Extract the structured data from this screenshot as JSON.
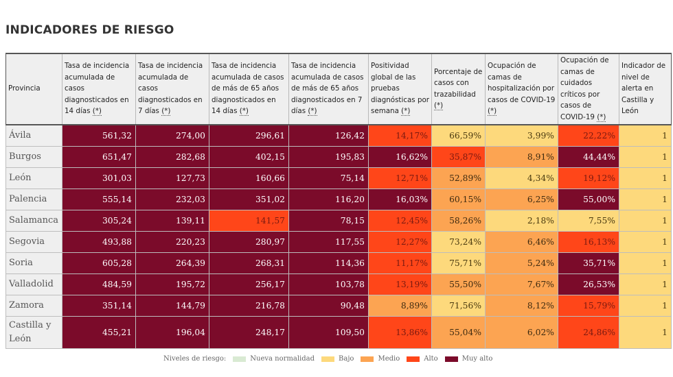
{
  "title": "INDICADORES DE RIESGO",
  "table": {
    "headers": [
      {
        "text": "Provincia",
        "note": ""
      },
      {
        "text": "Tasa de incidencia acumulada de casos diagnosticados en 14 días",
        "note": "(*)"
      },
      {
        "text": "Tasa de incidencia acumulada de casos diagnosticados en 7 días",
        "note": "(*)"
      },
      {
        "text": "Tasa de incidencia acumulada de casos de más de 65 años diagnosticados en 14 días",
        "note": "(*)"
      },
      {
        "text": "Tasa de incidencia acumulada de casos de más de 65 años diagnosticados en 7 días",
        "note": "(*)"
      },
      {
        "text": "Positividad global de las pruebas diagnósticas por semana",
        "note": "(*)"
      },
      {
        "text": "Porcentaje de casos con trazabilidad",
        "note": "(*)"
      },
      {
        "text": "Ocupación de camas de hospitalización por casos de COVID-19",
        "note": "(*)"
      },
      {
        "text": "Ocupación de camas de cuidados críticos por casos de COVID-19",
        "note": "(*)"
      },
      {
        "text": "Indicador de nivel de alerta en Castilla y León",
        "note": ""
      }
    ],
    "rows": [
      {
        "provincia": "Ávila",
        "cells": [
          {
            "v": "561,32",
            "level": "muyalto"
          },
          {
            "v": "274,00",
            "level": "muyalto"
          },
          {
            "v": "296,61",
            "level": "muyalto"
          },
          {
            "v": "126,42",
            "level": "muyalto"
          },
          {
            "v": "14,17%",
            "level": "alto"
          },
          {
            "v": "66,59%",
            "level": "bajo"
          },
          {
            "v": "3,99%",
            "level": "bajo"
          },
          {
            "v": "22,22%",
            "level": "alto"
          },
          {
            "v": "1",
            "level": "bajo"
          }
        ]
      },
      {
        "provincia": "Burgos",
        "cells": [
          {
            "v": "651,47",
            "level": "muyalto"
          },
          {
            "v": "282,68",
            "level": "muyalto"
          },
          {
            "v": "402,15",
            "level": "muyalto"
          },
          {
            "v": "195,83",
            "level": "muyalto"
          },
          {
            "v": "16,62%",
            "level": "muyalto"
          },
          {
            "v": "35,87%",
            "level": "alto"
          },
          {
            "v": "8,91%",
            "level": "medio"
          },
          {
            "v": "44,44%",
            "level": "muyalto"
          },
          {
            "v": "1",
            "level": "bajo"
          }
        ]
      },
      {
        "provincia": "León",
        "cells": [
          {
            "v": "301,03",
            "level": "muyalto"
          },
          {
            "v": "127,73",
            "level": "muyalto"
          },
          {
            "v": "160,66",
            "level": "muyalto"
          },
          {
            "v": "75,14",
            "level": "muyalto"
          },
          {
            "v": "12,71%",
            "level": "alto"
          },
          {
            "v": "52,89%",
            "level": "medio"
          },
          {
            "v": "4,34%",
            "level": "bajo"
          },
          {
            "v": "19,12%",
            "level": "alto"
          },
          {
            "v": "1",
            "level": "bajo"
          }
        ]
      },
      {
        "provincia": "Palencia",
        "cells": [
          {
            "v": "555,14",
            "level": "muyalto"
          },
          {
            "v": "232,03",
            "level": "muyalto"
          },
          {
            "v": "351,02",
            "level": "muyalto"
          },
          {
            "v": "116,20",
            "level": "muyalto"
          },
          {
            "v": "16,03%",
            "level": "muyalto"
          },
          {
            "v": "60,15%",
            "level": "medio"
          },
          {
            "v": "6,25%",
            "level": "medio"
          },
          {
            "v": "55,00%",
            "level": "muyalto"
          },
          {
            "v": "1",
            "level": "bajo"
          }
        ]
      },
      {
        "provincia": "Salamanca",
        "cells": [
          {
            "v": "305,24",
            "level": "muyalto"
          },
          {
            "v": "139,11",
            "level": "muyalto"
          },
          {
            "v": "141,57",
            "level": "alto"
          },
          {
            "v": "78,15",
            "level": "muyalto"
          },
          {
            "v": "12,45%",
            "level": "alto"
          },
          {
            "v": "58,26%",
            "level": "medio"
          },
          {
            "v": "2,18%",
            "level": "bajo"
          },
          {
            "v": "7,55%",
            "level": "bajo"
          },
          {
            "v": "1",
            "level": "bajo"
          }
        ]
      },
      {
        "provincia": "Segovia",
        "cells": [
          {
            "v": "493,88",
            "level": "muyalto"
          },
          {
            "v": "220,23",
            "level": "muyalto"
          },
          {
            "v": "280,97",
            "level": "muyalto"
          },
          {
            "v": "117,55",
            "level": "muyalto"
          },
          {
            "v": "12,27%",
            "level": "alto"
          },
          {
            "v": "73,24%",
            "level": "bajo"
          },
          {
            "v": "6,46%",
            "level": "medio"
          },
          {
            "v": "16,13%",
            "level": "alto"
          },
          {
            "v": "1",
            "level": "bajo"
          }
        ]
      },
      {
        "provincia": "Soria",
        "cells": [
          {
            "v": "605,28",
            "level": "muyalto"
          },
          {
            "v": "264,39",
            "level": "muyalto"
          },
          {
            "v": "268,31",
            "level": "muyalto"
          },
          {
            "v": "114,36",
            "level": "muyalto"
          },
          {
            "v": "11,17%",
            "level": "alto"
          },
          {
            "v": "75,71%",
            "level": "bajo"
          },
          {
            "v": "5,24%",
            "level": "medio"
          },
          {
            "v": "35,71%",
            "level": "muyalto"
          },
          {
            "v": "1",
            "level": "bajo"
          }
        ]
      },
      {
        "provincia": "Valladolid",
        "cells": [
          {
            "v": "484,59",
            "level": "muyalto"
          },
          {
            "v": "195,72",
            "level": "muyalto"
          },
          {
            "v": "256,17",
            "level": "muyalto"
          },
          {
            "v": "103,78",
            "level": "muyalto"
          },
          {
            "v": "13,19%",
            "level": "alto"
          },
          {
            "v": "55,50%",
            "level": "medio"
          },
          {
            "v": "7,67%",
            "level": "medio"
          },
          {
            "v": "26,53%",
            "level": "muyalto"
          },
          {
            "v": "1",
            "level": "bajo"
          }
        ]
      },
      {
        "provincia": "Zamora",
        "cells": [
          {
            "v": "351,14",
            "level": "muyalto"
          },
          {
            "v": "144,79",
            "level": "muyalto"
          },
          {
            "v": "216,78",
            "level": "muyalto"
          },
          {
            "v": "90,48",
            "level": "muyalto"
          },
          {
            "v": "8,89%",
            "level": "medio"
          },
          {
            "v": "71,56%",
            "level": "bajo"
          },
          {
            "v": "8,12%",
            "level": "medio"
          },
          {
            "v": "15,79%",
            "level": "alto"
          },
          {
            "v": "1",
            "level": "bajo"
          }
        ]
      },
      {
        "provincia": "Castilla y León",
        "tall": true,
        "cells": [
          {
            "v": "455,21",
            "level": "muyalto"
          },
          {
            "v": "196,04",
            "level": "muyalto"
          },
          {
            "v": "248,17",
            "level": "muyalto"
          },
          {
            "v": "109,50",
            "level": "muyalto"
          },
          {
            "v": "13,86%",
            "level": "alto"
          },
          {
            "v": "55,04%",
            "level": "medio"
          },
          {
            "v": "6,02%",
            "level": "medio"
          },
          {
            "v": "24,86%",
            "level": "alto"
          },
          {
            "v": "1",
            "level": "bajo"
          }
        ]
      }
    ]
  },
  "legend": {
    "label": "Niveles de riesgo:",
    "items": [
      {
        "key": "nueva",
        "label": "Nueva normalidad",
        "color": "#d9ead3"
      },
      {
        "key": "bajo",
        "label": "Bajo",
        "color": "#fdd97c"
      },
      {
        "key": "medio",
        "label": "Medio",
        "color": "#fca452"
      },
      {
        "key": "alto",
        "label": "Alto",
        "color": "#ff4619"
      },
      {
        "key": "muyalto",
        "label": "Muy alto",
        "color": "#7b0b2a"
      }
    ]
  }
}
